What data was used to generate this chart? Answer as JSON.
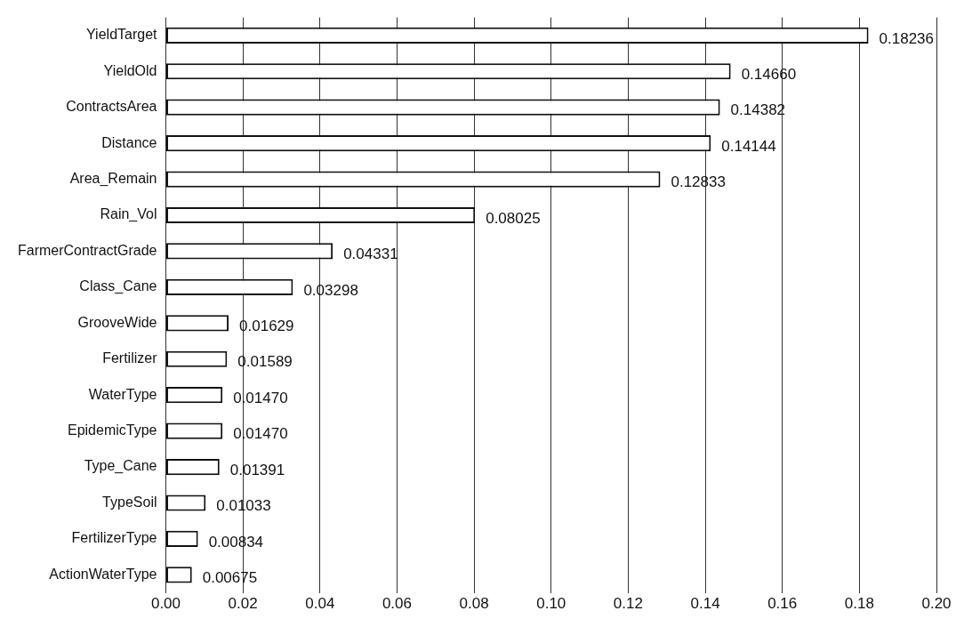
{
  "chart_data": {
    "type": "bar",
    "orientation": "horizontal",
    "categories": [
      "YieldTarget",
      "YieldOld",
      "ContractsArea",
      "Distance",
      "Area_Remain",
      "Rain_Vol",
      "FarmerContractGrade",
      "Class_Cane",
      "GrooveWide",
      "Fertilizer",
      "WaterType",
      "EpidemicType",
      "Type_Cane",
      "TypeSoil",
      "FertilizerType",
      "ActionWaterType"
    ],
    "values": [
      0.18236,
      0.1466,
      0.14382,
      0.14144,
      0.12833,
      0.08025,
      0.04331,
      0.03298,
      0.01629,
      0.01589,
      0.0147,
      0.0147,
      0.01391,
      0.01033,
      0.00834,
      0.00675
    ],
    "value_labels": [
      "0.18236",
      "0.14660",
      "0.14382",
      "0.14144",
      "0.12833",
      "0.08025",
      "0.04331",
      "0.03298",
      "0.01629",
      "0.01589",
      "0.01470",
      "0.01470",
      "0.01391",
      "0.01033",
      "0.00834",
      "0.00675"
    ],
    "color": "#ffffff",
    "xlim": [
      0,
      0.2
    ],
    "xticks": [
      {
        "value": 0,
        "label": "0.00"
      },
      {
        "value": 0.02,
        "label": "0.02"
      },
      {
        "value": 0.04,
        "label": "0.04"
      },
      {
        "value": 0.06,
        "label": "0.06"
      },
      {
        "value": 0.08,
        "label": "0.08"
      },
      {
        "value": 0.1,
        "label": "0.10"
      },
      {
        "value": 0.12,
        "label": "0.12"
      },
      {
        "value": 0.14,
        "label": "0.14"
      },
      {
        "value": 0.16,
        "label": "0.16"
      },
      {
        "value": 0.18,
        "label": "0.18"
      },
      {
        "value": 0.2,
        "label": "0.20"
      }
    ],
    "grid": "x",
    "legend": false
  }
}
